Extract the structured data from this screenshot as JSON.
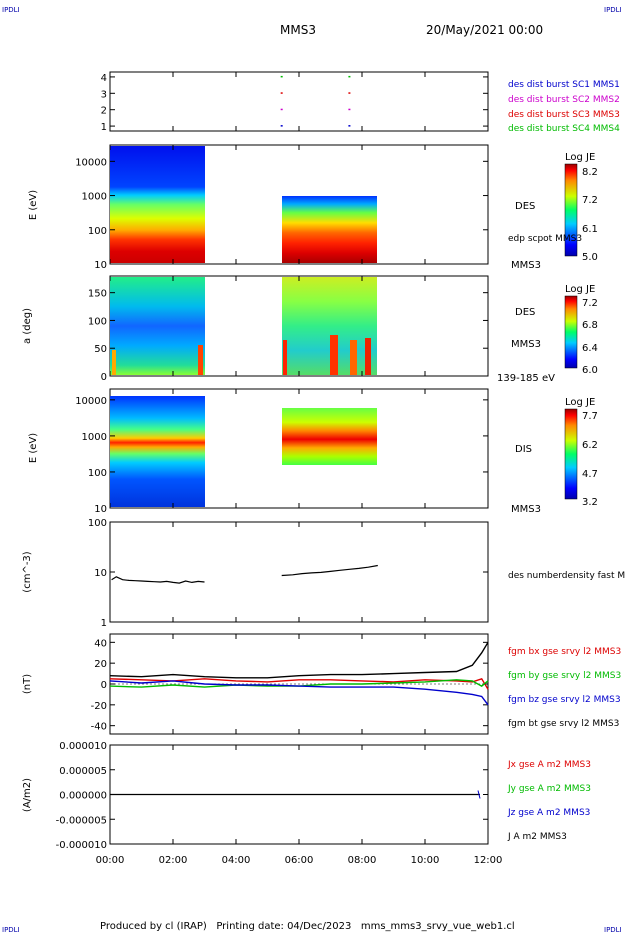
{
  "header": {
    "corner_left": "IPDLI",
    "corner_right": "IPDLI",
    "mission": "MMS3",
    "datetime": "20/May/2021 00:00",
    "footer": "Produced by cl (IRAP)   Printing date: 04/Dec/2023   mms_mms3_srvy_vue_web1.cl",
    "footer_corner_left": "IPDLI",
    "footer_corner_right": "IPDLI"
  },
  "colors": {
    "blue": "#0000cc",
    "magenta": "#cc00cc",
    "red": "#dd0000",
    "green": "#00bb00",
    "black": "#000000"
  },
  "chart_data": [
    {
      "type": "scatter",
      "panel": "availability",
      "yticks": [
        "1",
        "2",
        "3",
        "4"
      ],
      "ylim": [
        0.7,
        4.3
      ],
      "x_hours": [
        5.45,
        7.6
      ],
      "series": [
        {
          "name": "des dist burst SC1 MMS1",
          "y": 1,
          "color": "#0000cc"
        },
        {
          "name": "des dist burst SC2 MMS2",
          "y": 2,
          "color": "#cc00cc"
        },
        {
          "name": "des dist burst SC3 MMS3",
          "y": 3,
          "color": "#dd0000"
        },
        {
          "name": "des dist burst SC4 MMS4",
          "y": 4,
          "color": "#00bb00"
        }
      ]
    },
    {
      "type": "heatmap",
      "panel": "des-energy",
      "ylabel": "E (eV)",
      "yscale": "log",
      "ylim": [
        10,
        30000
      ],
      "yticks": [
        "10",
        "100",
        "1000",
        "10000"
      ],
      "right_label": "DES",
      "right_label2": "edp scpot MMS3",
      "right_label3": "MMS3",
      "colorbar": {
        "title": "Log JE",
        "min": 5.0,
        "max": 8.2,
        "ticks": [
          "8.2",
          "7.2",
          "6.1",
          "5.0"
        ]
      },
      "intervals_hours": [
        [
          0,
          3.0
        ],
        [
          5.45,
          8.5
        ]
      ]
    },
    {
      "type": "heatmap",
      "panel": "des-pitch-angle",
      "ylabel": "a (deg)",
      "ylim": [
        0,
        180
      ],
      "yticks": [
        "0",
        "50",
        "100",
        "150"
      ],
      "right_label": "DES",
      "right_label2": "MMS3",
      "right_label3": "139-185 eV",
      "colorbar": {
        "title": "Log JE",
        "min": 6.0,
        "max": 7.2,
        "ticks": [
          "7.2",
          "6.8",
          "6.4",
          "6.0"
        ]
      },
      "intervals_hours": [
        [
          0,
          3.0
        ],
        [
          5.45,
          8.5
        ]
      ]
    },
    {
      "type": "heatmap",
      "panel": "dis-energy",
      "ylabel": "E (eV)",
      "yscale": "log",
      "ylim": [
        10,
        20000
      ],
      "yticks": [
        "10",
        "100",
        "1000",
        "10000"
      ],
      "right_label": "DIS",
      "right_label2": "MMS3",
      "colorbar": {
        "title": "Log JE",
        "min": 3.2,
        "max": 7.7,
        "ticks": [
          "7.7",
          "6.2",
          "4.7",
          "3.2"
        ]
      },
      "intervals_hours": [
        [
          0,
          3.0
        ],
        [
          5.45,
          8.5
        ]
      ]
    },
    {
      "type": "line",
      "panel": "density",
      "ylabel": "(cm^-3)",
      "yscale": "log",
      "ylim": [
        1,
        100
      ],
      "yticks": [
        "1",
        "10",
        "100"
      ],
      "series": [
        {
          "name": "des numberdensity fast M",
          "color": "#000000"
        }
      ],
      "segments": [
        {
          "x": [
            0.05,
            0.2,
            0.4,
            0.6,
            0.8,
            1.0,
            1.2,
            1.4,
            1.6,
            1.8,
            2.0,
            2.2,
            2.4,
            2.6,
            2.8,
            3.0
          ],
          "y": [
            7,
            8,
            7,
            6.8,
            6.7,
            6.6,
            6.5,
            6.4,
            6.3,
            6.5,
            6.2,
            6.0,
            6.6,
            6.2,
            6.5,
            6.3
          ]
        },
        {
          "x": [
            5.45,
            5.8,
            6.1,
            6.4,
            6.7,
            7.0,
            7.3,
            7.6,
            7.9,
            8.2,
            8.5
          ],
          "y": [
            8.5,
            8.8,
            9.3,
            9.6,
            9.8,
            10.3,
            10.8,
            11.3,
            11.8,
            12.5,
            13.5
          ]
        }
      ]
    },
    {
      "type": "line",
      "panel": "magnetic-field",
      "ylabel": "(nT)",
      "ylim": [
        -48,
        48
      ],
      "yticks": [
        "-40",
        "-20",
        "0",
        "20",
        "40"
      ],
      "x": [
        0,
        1,
        2,
        3,
        4,
        5,
        6,
        7,
        8,
        9,
        10,
        11,
        11.5,
        11.8,
        12
      ],
      "series": [
        {
          "name": "fgm bx gse srvy l2 MMS3",
          "color": "#dd0000",
          "values": [
            5,
            4,
            3,
            5,
            3,
            2,
            4,
            4,
            3,
            2,
            4,
            3,
            2,
            5,
            -5
          ]
        },
        {
          "name": "fgm by gse srvy l2 MMS3",
          "color": "#00bb00",
          "values": [
            -2,
            -3,
            -1,
            -3,
            -1,
            -2,
            -2,
            0,
            0,
            1,
            2,
            4,
            3,
            -2,
            3
          ]
        },
        {
          "name": "fgm bz gse srvy l2 MMS3",
          "color": "#0000cc",
          "values": [
            3,
            1,
            3,
            0,
            -1,
            -1,
            -2,
            -3,
            -3,
            -3,
            -5,
            -8,
            -10,
            -12,
            -20
          ]
        },
        {
          "name": "fgm bt gse srvy l2 MMS3",
          "color": "#000000",
          "values": [
            8,
            7,
            9,
            7,
            6,
            6,
            8,
            9,
            9,
            10,
            11,
            12,
            18,
            30,
            40
          ]
        }
      ]
    },
    {
      "type": "line",
      "panel": "current-density",
      "ylabel": "(A/m2)",
      "ylim": [
        -1e-05,
        1e-05
      ],
      "yticks": [
        "-0.000010",
        "-0.000005",
        "0.000000",
        "0.000005",
        "0.000010"
      ],
      "series": [
        {
          "name": "Jx gse A m2 MMS3",
          "color": "#dd0000"
        },
        {
          "name": "Jy gse A m2 MMS3",
          "color": "#00bb00"
        },
        {
          "name": "Jz gse A m2 MMS3",
          "color": "#0000cc"
        },
        {
          "name": "J A m2 MMS3",
          "color": "#000000"
        }
      ]
    }
  ],
  "xaxis": {
    "ticks": [
      "00:00",
      "02:00",
      "04:00",
      "06:00",
      "08:00",
      "10:00",
      "12:00"
    ],
    "xlim_hours": [
      0,
      12
    ]
  }
}
